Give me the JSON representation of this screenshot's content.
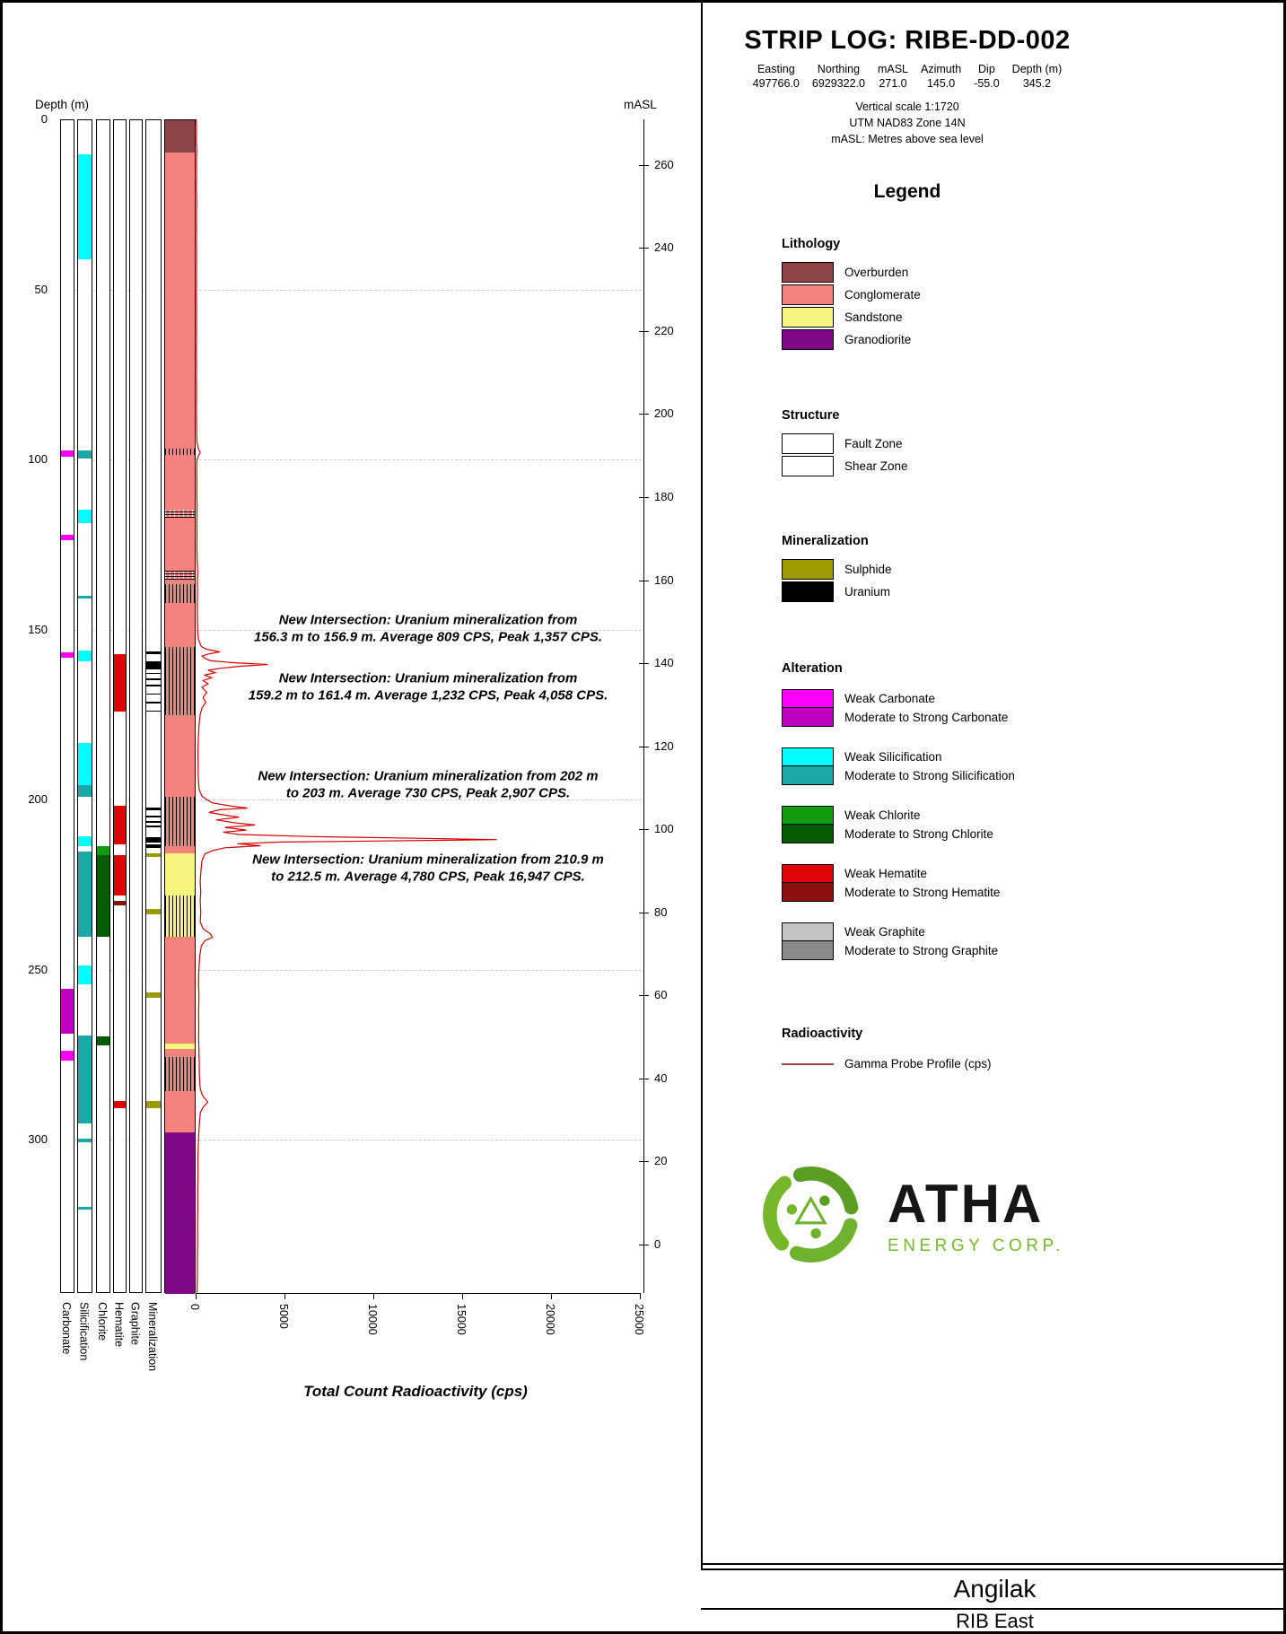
{
  "header": {
    "title": "STRIP LOG: RIBE-DD-002",
    "meta": [
      {
        "label": "Easting",
        "value": "497766.0"
      },
      {
        "label": "Northing",
        "value": "6929322.0"
      },
      {
        "label": "mASL",
        "value": "271.0"
      },
      {
        "label": "Azimuth",
        "value": "145.0"
      },
      {
        "label": "Dip",
        "value": "-55.0"
      },
      {
        "label": "Depth (m)",
        "value": "345.2"
      }
    ],
    "notes": [
      "Vertical scale 1:1720",
      "UTM NAD83 Zone 14N",
      "mASL: Metres above sea level"
    ]
  },
  "legend": {
    "title": "Legend",
    "lithology": {
      "heading": "Lithology",
      "items": [
        {
          "label": "Overburden",
          "color": "#8e4348"
        },
        {
          "label": "Conglomerate",
          "color": "#f4837e"
        },
        {
          "label": "Sandstone",
          "color": "#f5f57d"
        },
        {
          "label": "Granodiorite",
          "color": "#7e0a86"
        }
      ]
    },
    "structure": {
      "heading": "Structure",
      "items": [
        {
          "label": "Fault Zone",
          "pattern": "fault"
        },
        {
          "label": "Shear Zone",
          "pattern": "shear"
        }
      ]
    },
    "mineralization": {
      "heading": "Mineralization",
      "items": [
        {
          "label": "Sulphide",
          "color": "#9b9b00"
        },
        {
          "label": "Uranium",
          "color": "#000000"
        }
      ]
    },
    "alteration": {
      "heading": "Alteration",
      "pairs": [
        {
          "weak": "Weak Carbonate",
          "weak_color": "#ff00ff",
          "strong": "Moderate to Strong Carbonate",
          "strong_color": "#bf00bf"
        },
        {
          "weak": "Weak Silicification",
          "weak_color": "#00ffff",
          "strong": "Moderate to Strong Silicification",
          "strong_color": "#1ba8a8"
        },
        {
          "weak": "Weak Chlorite",
          "weak_color": "#119c11",
          "strong": "Moderate to Strong Chlorite",
          "strong_color": "#055c05"
        },
        {
          "weak": "Weak Hematite",
          "weak_color": "#e00505",
          "strong": "Moderate to Strong Hematite",
          "strong_color": "#8c0f0f"
        },
        {
          "weak": "Weak Graphite",
          "weak_color": "#c4c4c4",
          "strong": "Moderate to Strong Graphite",
          "strong_color": "#8a8a8a"
        }
      ]
    },
    "radioactivity": {
      "heading": "Radioactivity",
      "items": [
        {
          "label": "Gamma Probe Profile (cps)",
          "color": "#a04040"
        }
      ]
    }
  },
  "logo": {
    "name": "ATHA",
    "subtitle": "ENERGY CORP."
  },
  "footer": {
    "project": "Angilak",
    "area": "RIB East"
  },
  "chart_data": {
    "type": "strip-log",
    "title": "STRIP LOG: RIBE-DD-002",
    "depth_axis": {
      "label": "Depth (m)",
      "ticks": [
        0,
        50,
        100,
        150,
        200,
        250,
        300
      ],
      "max_depth": 345.2
    },
    "masl_axis": {
      "label": "mASL",
      "ticks": [
        260,
        240,
        220,
        200,
        180,
        160,
        140,
        120,
        100,
        80,
        60,
        40,
        20,
        0
      ],
      "collar_masl": 271.0,
      "vertical_component": 0.8192
    },
    "cps_axis": {
      "label": "Total Count Radioactivity (cps)",
      "ticks": [
        0,
        5000,
        10000,
        15000,
        20000,
        25000
      ],
      "max": 25000
    },
    "track_order": [
      "Carbonate",
      "Silicification",
      "Chlorite",
      "Hematite",
      "Graphite",
      "Mineralization"
    ],
    "palette": {
      "Overburden": "#8e4348",
      "Conglomerate": "#f4837e",
      "Sandstone": "#f5f57d",
      "Granodiorite": "#7e0a86",
      "carbonate_weak": "#ff00ff",
      "carbonate_strong": "#bf00bf",
      "silicification_weak": "#00ffff",
      "silicification_strong": "#1ba8a8",
      "chlorite_weak": "#119c11",
      "chlorite_strong": "#055c05",
      "hematite_weak": "#e00505",
      "hematite_strong": "#8c0f0f",
      "graphite_weak": "#c4c4c4",
      "graphite_strong": "#8a8a8a",
      "sulphide": "#9b9b00",
      "uranium": "#000000",
      "gamma": "#d40000"
    },
    "tracks": {
      "Carbonate": [
        {
          "from": 97,
          "to": 99,
          "color": "carbonate_weak"
        },
        {
          "from": 122,
          "to": 123.5,
          "color": "carbonate_weak"
        },
        {
          "from": 156.5,
          "to": 158,
          "color": "carbonate_weak"
        },
        {
          "from": 255.5,
          "to": 268.5,
          "color": "carbonate_strong"
        },
        {
          "from": 273.5,
          "to": 276.5,
          "color": "carbonate_weak"
        }
      ],
      "Silicification": [
        {
          "from": 10,
          "to": 41,
          "color": "silicification_weak"
        },
        {
          "from": 97,
          "to": 99.5,
          "color": "silicification_strong"
        },
        {
          "from": 114.5,
          "to": 118.5,
          "color": "silicification_weak"
        },
        {
          "from": 139.8,
          "to": 140.6,
          "color": "silicification_strong"
        },
        {
          "from": 156,
          "to": 159,
          "color": "silicification_weak"
        },
        {
          "from": 183,
          "to": 195.5,
          "color": "silicification_weak"
        },
        {
          "from": 195.5,
          "to": 199,
          "color": "silicification_strong"
        },
        {
          "from": 210.5,
          "to": 213.5,
          "color": "silicification_weak"
        },
        {
          "from": 215,
          "to": 240,
          "color": "silicification_strong"
        },
        {
          "from": 248.5,
          "to": 254,
          "color": "silicification_weak"
        },
        {
          "from": 269,
          "to": 295,
          "color": "silicification_strong"
        },
        {
          "from": 299.5,
          "to": 300.5,
          "color": "silicification_strong"
        },
        {
          "from": 319.5,
          "to": 320.3,
          "color": "silicification_strong"
        }
      ],
      "Chlorite": [
        {
          "from": 213.5,
          "to": 216,
          "color": "chlorite_weak"
        },
        {
          "from": 216,
          "to": 240,
          "color": "chlorite_strong"
        },
        {
          "from": 269.5,
          "to": 272,
          "color": "chlorite_strong"
        }
      ],
      "Hematite": [
        {
          "from": 157,
          "to": 174,
          "color": "hematite_weak"
        },
        {
          "from": 201.5,
          "to": 213,
          "color": "hematite_weak"
        },
        {
          "from": 216,
          "to": 228,
          "color": "hematite_weak"
        },
        {
          "from": 229.5,
          "to": 231,
          "color": "hematite_strong"
        },
        {
          "from": 288.5,
          "to": 290.5,
          "color": "hematite_weak"
        }
      ],
      "Graphite": [],
      "Mineralization": [
        {
          "from": 156.3,
          "to": 156.9,
          "color": "uranium"
        },
        {
          "from": 159.2,
          "to": 161.4,
          "color": "uranium"
        },
        {
          "from": 162.5,
          "to": 162.9,
          "color": "uranium"
        },
        {
          "from": 164.2,
          "to": 164.6,
          "color": "uranium"
        },
        {
          "from": 166,
          "to": 166.4,
          "color": "uranium"
        },
        {
          "from": 168.5,
          "to": 168.9,
          "color": "uranium"
        },
        {
          "from": 171,
          "to": 171.4,
          "color": "uranium"
        },
        {
          "from": 173.5,
          "to": 173.9,
          "color": "uranium"
        },
        {
          "from": 202,
          "to": 203,
          "color": "uranium"
        },
        {
          "from": 204.5,
          "to": 205,
          "color": "uranium"
        },
        {
          "from": 206,
          "to": 206.5,
          "color": "uranium"
        },
        {
          "from": 207.5,
          "to": 208,
          "color": "uranium"
        },
        {
          "from": 210.9,
          "to": 212.5,
          "color": "uranium"
        },
        {
          "from": 213,
          "to": 214,
          "color": "uranium"
        },
        {
          "from": 215.5,
          "to": 216.5,
          "color": "sulphide"
        },
        {
          "from": 232,
          "to": 233.5,
          "color": "sulphide"
        },
        {
          "from": 256.5,
          "to": 258,
          "color": "sulphide"
        },
        {
          "from": 288.5,
          "to": 290.5,
          "color": "sulphide"
        }
      ]
    },
    "lithology": [
      {
        "from": 0,
        "to": 9.5,
        "unit": "Overburden"
      },
      {
        "from": 9.5,
        "to": 215.5,
        "unit": "Conglomerate"
      },
      {
        "from": 215.5,
        "to": 240,
        "unit": "Sandstone"
      },
      {
        "from": 240,
        "to": 271.5,
        "unit": "Conglomerate"
      },
      {
        "from": 271.5,
        "to": 273,
        "unit": "Sandstone"
      },
      {
        "from": 273,
        "to": 297.5,
        "unit": "Conglomerate"
      },
      {
        "from": 297.5,
        "to": 345.2,
        "unit": "Granodiorite"
      }
    ],
    "structure": [
      {
        "from": 96.5,
        "to": 98.5,
        "type": "fault"
      },
      {
        "from": 114.5,
        "to": 117,
        "type": "shear"
      },
      {
        "from": 132.5,
        "to": 135,
        "type": "shear"
      },
      {
        "from": 136.5,
        "to": 142,
        "type": "fault"
      },
      {
        "from": 155,
        "to": 175,
        "type": "fault"
      },
      {
        "from": 199,
        "to": 213.5,
        "type": "fault"
      },
      {
        "from": 228,
        "to": 240,
        "type": "fault"
      },
      {
        "from": 275.5,
        "to": 285.5,
        "type": "fault"
      }
    ],
    "annotations": [
      {
        "depth_center": 149.8,
        "text": "New Intersection: Uranium mineralization from\n156.3 m to 156.9 m. Average 809 CPS, Peak 1,357 CPS."
      },
      {
        "depth_center": 166.9,
        "text": "New Intersection: Uranium mineralization from\n159.2 m to 161.4 m. Average 1,232 CPS, Peak 4,058 CPS."
      },
      {
        "depth_center": 195.7,
        "text": "New Intersection: Uranium mineralization from 202 m\nto 203 m. Average 730 CPS, Peak 2,907 CPS."
      },
      {
        "depth_center": 220.2,
        "text": "New Intersection: Uranium mineralization from 210.9 m\nto 212.5 m. Average 4,780 CPS, Peak 16,947 CPS."
      }
    ],
    "gamma_profile": [
      [
        0,
        30
      ],
      [
        3,
        55
      ],
      [
        6,
        40
      ],
      [
        9,
        65
      ],
      [
        12,
        45
      ],
      [
        16,
        55
      ],
      [
        20,
        45
      ],
      [
        24,
        60
      ],
      [
        28,
        50
      ],
      [
        32,
        58
      ],
      [
        36,
        48
      ],
      [
        40,
        60
      ],
      [
        44,
        50
      ],
      [
        48,
        56
      ],
      [
        52,
        46
      ],
      [
        56,
        58
      ],
      [
        60,
        48
      ],
      [
        64,
        56
      ],
      [
        68,
        46
      ],
      [
        72,
        58
      ],
      [
        76,
        48
      ],
      [
        80,
        60
      ],
      [
        84,
        50
      ],
      [
        88,
        58
      ],
      [
        92,
        62
      ],
      [
        95,
        75
      ],
      [
        97,
        160
      ],
      [
        98,
        260
      ],
      [
        99,
        150
      ],
      [
        100,
        80
      ],
      [
        103,
        60
      ],
      [
        106,
        70
      ],
      [
        110,
        65
      ],
      [
        114,
        80
      ],
      [
        118,
        70
      ],
      [
        122,
        78
      ],
      [
        126,
        72
      ],
      [
        130,
        88
      ],
      [
        133,
        115
      ],
      [
        136,
        95
      ],
      [
        139,
        105
      ],
      [
        142,
        90
      ],
      [
        145,
        95
      ],
      [
        148,
        100
      ],
      [
        151,
        120
      ],
      [
        153,
        160
      ],
      [
        155,
        320
      ],
      [
        155.8,
        620
      ],
      [
        156.6,
        1357
      ],
      [
        157.2,
        720
      ],
      [
        157.8,
        360
      ],
      [
        158.5,
        520
      ],
      [
        159.2,
        850
      ],
      [
        159.8,
        2200
      ],
      [
        160.3,
        4058
      ],
      [
        160.8,
        2600
      ],
      [
        161.4,
        1400
      ],
      [
        162,
        700
      ],
      [
        162.7,
        1100
      ],
      [
        163.4,
        520
      ],
      [
        164.2,
        900
      ],
      [
        165,
        420
      ],
      [
        166,
        700
      ],
      [
        167,
        360
      ],
      [
        168.5,
        620
      ],
      [
        170,
        420
      ],
      [
        171.5,
        560
      ],
      [
        173,
        360
      ],
      [
        175,
        260
      ],
      [
        178,
        190
      ],
      [
        182,
        150
      ],
      [
        186,
        130
      ],
      [
        190,
        140
      ],
      [
        194,
        150
      ],
      [
        197,
        190
      ],
      [
        199,
        360
      ],
      [
        200,
        620
      ],
      [
        201,
        950
      ],
      [
        202,
        2100
      ],
      [
        202.5,
        2907
      ],
      [
        203,
        1350
      ],
      [
        203.8,
        750
      ],
      [
        204.5,
        1550
      ],
      [
        205.2,
        2450
      ],
      [
        206,
        1150
      ],
      [
        206.8,
        2150
      ],
      [
        207.5,
        3350
      ],
      [
        208.2,
        1650
      ],
      [
        209,
        2850
      ],
      [
        209.6,
        1550
      ],
      [
        210.3,
        2450
      ],
      [
        210.9,
        6500
      ],
      [
        211.4,
        12500
      ],
      [
        211.8,
        16947
      ],
      [
        212.2,
        10500
      ],
      [
        212.5,
        4780
      ],
      [
        213,
        2350
      ],
      [
        213.6,
        3650
      ],
      [
        214.2,
        1650
      ],
      [
        215,
        950
      ],
      [
        216,
        520
      ],
      [
        218,
        360
      ],
      [
        221,
        300
      ],
      [
        224,
        260
      ],
      [
        227,
        290
      ],
      [
        230,
        260
      ],
      [
        233,
        290
      ],
      [
        236,
        260
      ],
      [
        238,
        420
      ],
      [
        239.5,
        820
      ],
      [
        240.5,
        950
      ],
      [
        241.5,
        520
      ],
      [
        243,
        320
      ],
      [
        246,
        230
      ],
      [
        250,
        180
      ],
      [
        254,
        160
      ],
      [
        258,
        185
      ],
      [
        262,
        165
      ],
      [
        266,
        175
      ],
      [
        270,
        165
      ],
      [
        274,
        185
      ],
      [
        278,
        200
      ],
      [
        282,
        215
      ],
      [
        285,
        260
      ],
      [
        287,
        380
      ],
      [
        289,
        680
      ],
      [
        290.5,
        420
      ],
      [
        292,
        270
      ],
      [
        295,
        215
      ],
      [
        298,
        175
      ],
      [
        302,
        145
      ],
      [
        306,
        125
      ],
      [
        310,
        135
      ],
      [
        315,
        115
      ],
      [
        320,
        120
      ],
      [
        325,
        105
      ],
      [
        330,
        110
      ],
      [
        335,
        95
      ],
      [
        340,
        95
      ],
      [
        345,
        80
      ]
    ]
  }
}
